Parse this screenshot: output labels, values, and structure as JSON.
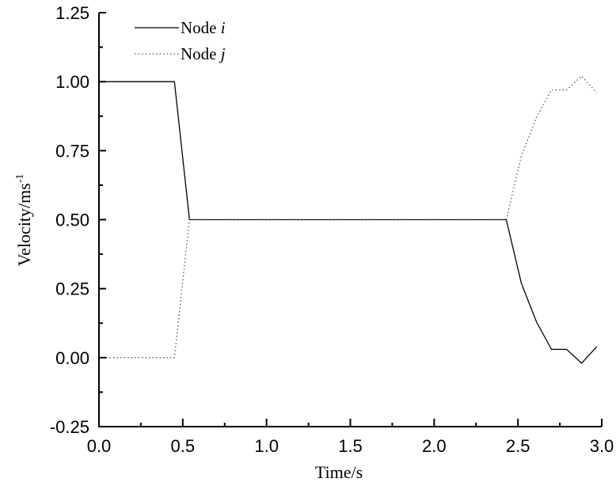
{
  "chart_data": {
    "type": "line",
    "title": "",
    "xlabel": "Time/s",
    "ylabel": "Velocity/ms",
    "ylabel_superscript": "-1",
    "xlim": [
      0.0,
      3.0
    ],
    "ylim": [
      -0.25,
      1.25
    ],
    "x_ticks": [
      "0.0",
      "0.5",
      "1.0",
      "1.5",
      "2.0",
      "2.5",
      "3.0"
    ],
    "y_ticks": [
      "-0.25",
      "0.00",
      "0.25",
      "0.50",
      "0.75",
      "1.00",
      "1.25"
    ],
    "grid": false,
    "legend_position": "upper left",
    "series": [
      {
        "name": "Node i",
        "label_main": "Node ",
        "label_italic": "i",
        "style": "solid",
        "color": "#000000",
        "x": [
          0.0,
          0.45,
          0.54,
          2.43,
          2.52,
          2.61,
          2.7,
          2.79,
          2.88,
          2.97
        ],
        "y": [
          1.0,
          1.0,
          0.5,
          0.5,
          0.27,
          0.13,
          0.03,
          0.03,
          -0.02,
          0.04
        ]
      },
      {
        "name": "Node j",
        "label_main": "Node ",
        "label_italic": "j",
        "style": "dotted",
        "color": "#000000",
        "x": [
          0.0,
          0.45,
          0.54,
          2.43,
          2.52,
          2.61,
          2.7,
          2.79,
          2.88,
          2.97
        ],
        "y": [
          0.0,
          0.0,
          0.5,
          0.5,
          0.73,
          0.87,
          0.97,
          0.97,
          1.02,
          0.96
        ]
      }
    ]
  }
}
